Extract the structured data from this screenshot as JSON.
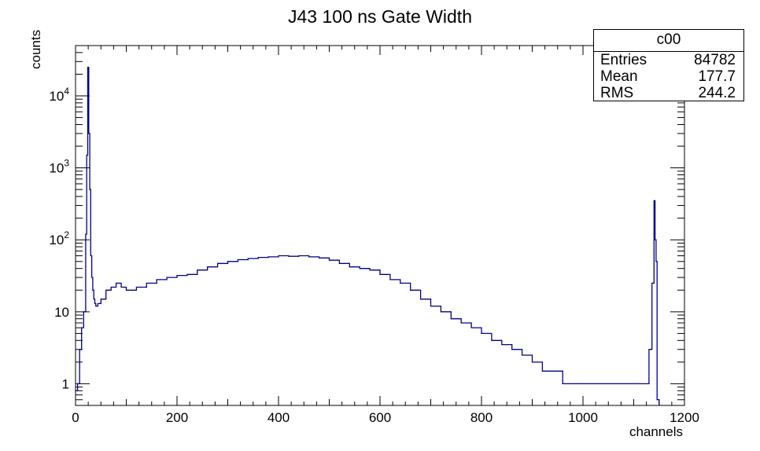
{
  "chart_data": {
    "type": "step-histogram",
    "title": "J43 100 ns Gate Width",
    "xlabel": "channels",
    "ylabel": "counts",
    "xlim": [
      0,
      1200
    ],
    "ylim": [
      0.5,
      50000
    ],
    "yscale": "log",
    "line_color": "#00008b",
    "x_ticks": [
      0,
      200,
      400,
      600,
      800,
      1000,
      1200
    ],
    "y_ticks": [
      {
        "value": 1,
        "base": "1",
        "exp": ""
      },
      {
        "value": 10,
        "base": "10",
        "exp": ""
      },
      {
        "value": 100,
        "base": "10",
        "exp": "2"
      },
      {
        "value": 1000,
        "base": "10",
        "exp": "3"
      },
      {
        "value": 10000,
        "base": "10",
        "exp": "4"
      }
    ],
    "series": [
      {
        "x": [
          0,
          4,
          8,
          12,
          16,
          20,
          22,
          24,
          26,
          28,
          30,
          32,
          34,
          36,
          38,
          40,
          44,
          50,
          60,
          70,
          80,
          90,
          100,
          120,
          140,
          160,
          180,
          200,
          220,
          240,
          260,
          280,
          300,
          320,
          340,
          360,
          380,
          400,
          420,
          440,
          460,
          480,
          500,
          520,
          540,
          560,
          580,
          600,
          620,
          640,
          660,
          680,
          700,
          720,
          740,
          760,
          780,
          800,
          820,
          840,
          860,
          880,
          900,
          920,
          940,
          960,
          980,
          1000,
          1020,
          1040,
          1060,
          1080,
          1100,
          1120,
          1130,
          1136,
          1140,
          1142,
          1144,
          1146,
          1150
        ],
        "y": [
          0.8,
          1,
          3,
          6,
          10,
          120,
          1500,
          25000,
          3000,
          500,
          60,
          30,
          20,
          15,
          13,
          12,
          13,
          15,
          20,
          22,
          25,
          22,
          20,
          22,
          25,
          28,
          30,
          32,
          33,
          38,
          42,
          47,
          50,
          53,
          55,
          57,
          58,
          60,
          59,
          60,
          58,
          56,
          52,
          47,
          42,
          40,
          38,
          33,
          28,
          25,
          20,
          15,
          12,
          10,
          8,
          7,
          6,
          5,
          4,
          3.5,
          3,
          2.5,
          2,
          1.5,
          1.5,
          1,
          1,
          1,
          1,
          1,
          1,
          1,
          1,
          1,
          3,
          25,
          350,
          100,
          50,
          0.6,
          0.5
        ]
      }
    ],
    "stats": {
      "name": "c00",
      "rows": [
        {
          "key": "Entries",
          "value": "84782"
        },
        {
          "key": "Mean",
          "value": "177.7"
        },
        {
          "key": "RMS",
          "value": "244.2"
        }
      ]
    }
  }
}
